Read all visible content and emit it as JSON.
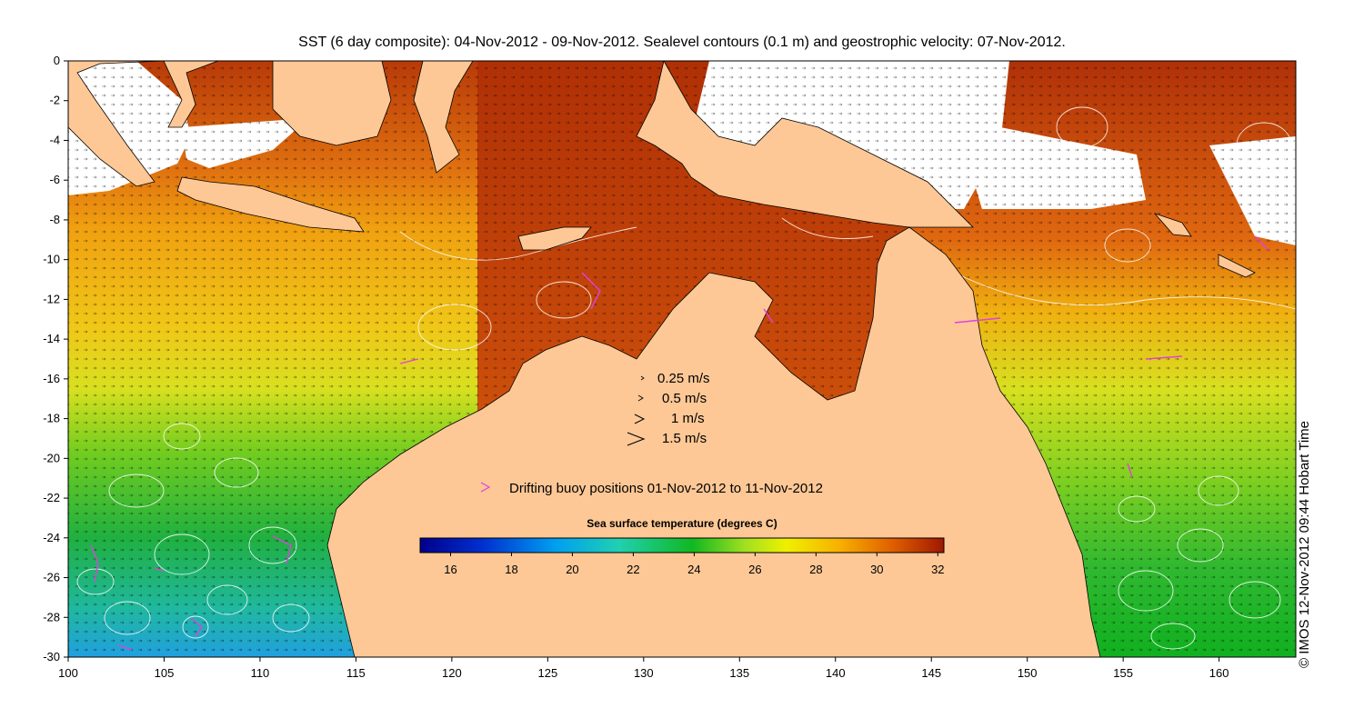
{
  "title": "SST (6 day composite): 04-Nov-2012 - 09-Nov-2012. Sealevel contours (0.1 m) and geostrophic velocity: 07-Nov-2012.",
  "credit": "© IMOS 12-Nov-2012 09:44 Hobart Time",
  "x_ticks": [
    "100",
    "105",
    "110",
    "115",
    "120",
    "125",
    "130",
    "135",
    "140",
    "145",
    "150",
    "155",
    "160"
  ],
  "y_ticks": [
    "0",
    "-2",
    "-4",
    "-6",
    "-8",
    "-10",
    "-12",
    "-14",
    "-16",
    "-18",
    "-20",
    "-22",
    "-24",
    "-26",
    "-28",
    "-30"
  ],
  "velocity_legend": [
    "0.25 m/s",
    "0.5 m/s",
    "1 m/s",
    "1.5 m/s"
  ],
  "buoy_legend": "Drifting buoy positions 01-Nov-2012 to 11-Nov-2012",
  "colorbar": {
    "title": "Sea surface temperature (degrees C)",
    "ticks": [
      "16",
      "18",
      "20",
      "22",
      "24",
      "26",
      "28",
      "30",
      "32"
    ],
    "range": [
      15,
      32.2
    ]
  },
  "map_extent": {
    "lon": [
      100,
      164
    ],
    "lat": [
      -30,
      0
    ]
  },
  "colors": {
    "land": "#fdc896",
    "buoy": "#e040e0",
    "contour": "#ffffff",
    "cold": "#00008b",
    "warm": "#a01800"
  }
}
